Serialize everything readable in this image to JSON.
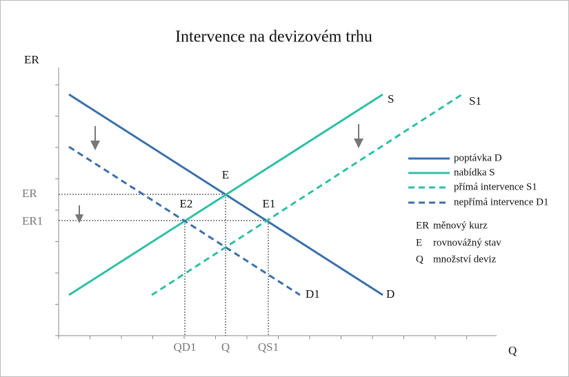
{
  "title": "Intervence na devizovém trhu",
  "axes": {
    "y_label": "ER",
    "x_label": "Q"
  },
  "curves": [
    {
      "label": "D",
      "legend": "poptávka D"
    },
    {
      "label": "S",
      "legend": "nabídka S"
    },
    {
      "label": "S1",
      "legend": "přímá intervence S1"
    },
    {
      "label": "D1",
      "legend": "nepřímá intervence D1"
    }
  ],
  "points": [
    "E",
    "E2",
    "E1"
  ],
  "y_levels": [
    "ER",
    "ER1"
  ],
  "x_levels": [
    "QD1",
    "Q",
    "QS1"
  ],
  "abbreviations": [
    {
      "abbr": "ER",
      "text": "měnový kurz"
    },
    {
      "abbr": "E",
      "text": "rovnovážný stav"
    },
    {
      "abbr": "Q",
      "text": "množství deviz"
    }
  ]
}
